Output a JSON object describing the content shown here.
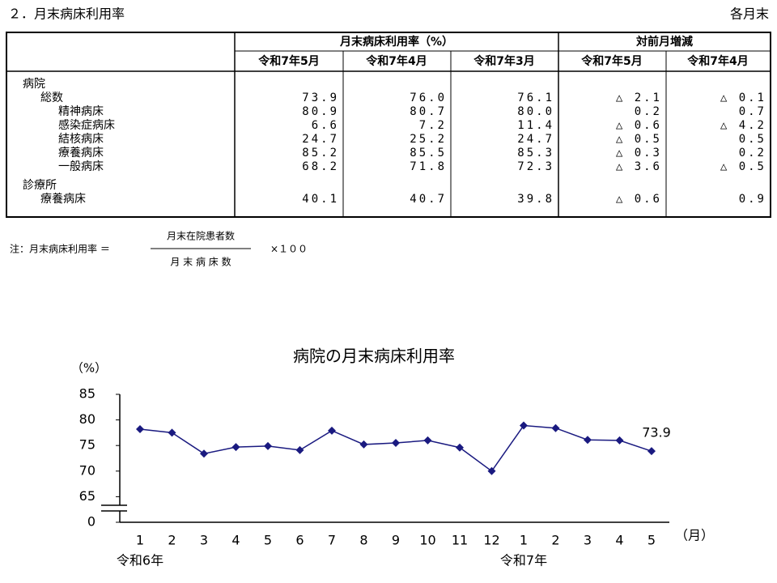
{
  "header": {
    "title": "２．月末病床利用率",
    "note_right": "各月末"
  },
  "table": {
    "group_headers": [
      "月末病床利用率（%）",
      "対前月増減"
    ],
    "columns": [
      "令和7年5月",
      "令和7年4月",
      "令和7年3月",
      "令和7年5月",
      "令和7年4月"
    ],
    "sections": [
      {
        "label": "病院",
        "rows": [
          {
            "label": "総数",
            "cells": [
              "73.9",
              "76.0",
              "76.1",
              "△ 2.1",
              "△ 0.1"
            ],
            "breakdown": [
              {
                "label": "精神病床",
                "cells": [
                  "80.9",
                  "80.7",
                  "80.0",
                  "0.2",
                  "0.7"
                ]
              },
              {
                "label": "感染症病床",
                "cells": [
                  "6.6",
                  "7.2",
                  "11.4",
                  "△ 0.6",
                  "△ 4.2"
                ]
              },
              {
                "label": "結核病床",
                "cells": [
                  "24.7",
                  "25.2",
                  "24.7",
                  "△ 0.5",
                  "0.5"
                ]
              },
              {
                "label": "療養病床",
                "cells": [
                  "85.2",
                  "85.5",
                  "85.3",
                  "△ 0.3",
                  "0.2"
                ]
              },
              {
                "label": "一般病床",
                "cells": [
                  "68.2",
                  "71.8",
                  "72.3",
                  "△ 3.6",
                  "△ 0.5"
                ]
              }
            ]
          }
        ]
      },
      {
        "label": "診療所",
        "rows": [
          {
            "label": "療養病床",
            "cells": [
              "40.1",
              "40.7",
              "39.8",
              "△ 0.6",
              "0.9"
            ]
          }
        ]
      }
    ]
  },
  "footnote": {
    "prefix": "注：月末病床利用率 ＝",
    "numerator": "月末在院患者数",
    "denominator": "月 末 病 床 数",
    "multiplier": "×１００"
  },
  "chart_data": {
    "type": "line",
    "title": "病院の月末病床利用率",
    "y_unit": "（%）",
    "x_unit": "（月）",
    "periods": [
      "令和6年",
      "令和7年"
    ],
    "categories": [
      "1",
      "2",
      "3",
      "4",
      "5",
      "6",
      "7",
      "8",
      "9",
      "10",
      "11",
      "12",
      "1",
      "2",
      "3",
      "4",
      "5"
    ],
    "values": [
      78.2,
      77.5,
      73.4,
      74.7,
      74.9,
      74.1,
      77.9,
      75.2,
      75.5,
      76.0,
      74.6,
      70.0,
      78.9,
      78.4,
      76.1,
      76.0,
      73.9
    ],
    "value_labels": [
      null,
      null,
      null,
      null,
      null,
      null,
      null,
      null,
      null,
      null,
      null,
      null,
      null,
      null,
      null,
      null,
      "73.9"
    ],
    "color": "#1a1a80",
    "ylim": [
      0,
      85
    ],
    "y_break": [
      0,
      60
    ],
    "yticks": [
      0,
      65,
      70,
      75,
      80,
      85
    ]
  }
}
